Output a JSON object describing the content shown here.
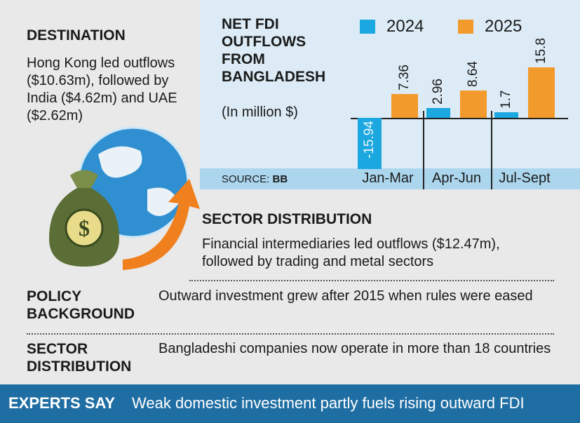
{
  "destination": {
    "heading": "DESTINATION",
    "text": "Hong Kong led outflows ($10.63m), followed by India ($4.62m) and UAE ($2.62m)"
  },
  "chart_data": {
    "type": "bar",
    "title": "NET FDI OUTFLOWS FROM BANGLADESH",
    "subtitle": "(In million $)",
    "categories": [
      "Jan-Mar",
      "Apr-Jun",
      "Jul-Sept"
    ],
    "series": [
      {
        "name": "2024",
        "color": "#1ba8e0",
        "values": [
          -15.94,
          2.96,
          1.7
        ]
      },
      {
        "name": "2025",
        "color": "#f39a2c",
        "values": [
          7.36,
          8.64,
          15.8
        ]
      }
    ],
    "ylim": [
      -16,
      16
    ]
  },
  "source": {
    "label": "SOURCE:",
    "value": "BB"
  },
  "sector_distribution": {
    "heading": "SECTOR DISTRIBUTION",
    "text": "Financial intermediaries led outflows ($12.47m), followed by trading and metal sectors"
  },
  "rows": [
    {
      "heading": "POLICY BACKGROUND",
      "text": "Outward investment grew after 2015 when rules were eased"
    },
    {
      "heading": "SECTOR DISTRIBUTION",
      "text": "Bangladeshi companies now operate in more than 18 countries"
    }
  ],
  "footer": {
    "label": "EXPERTS SAY",
    "text": "Weak domestic investment partly fuels rising outward FDI"
  }
}
